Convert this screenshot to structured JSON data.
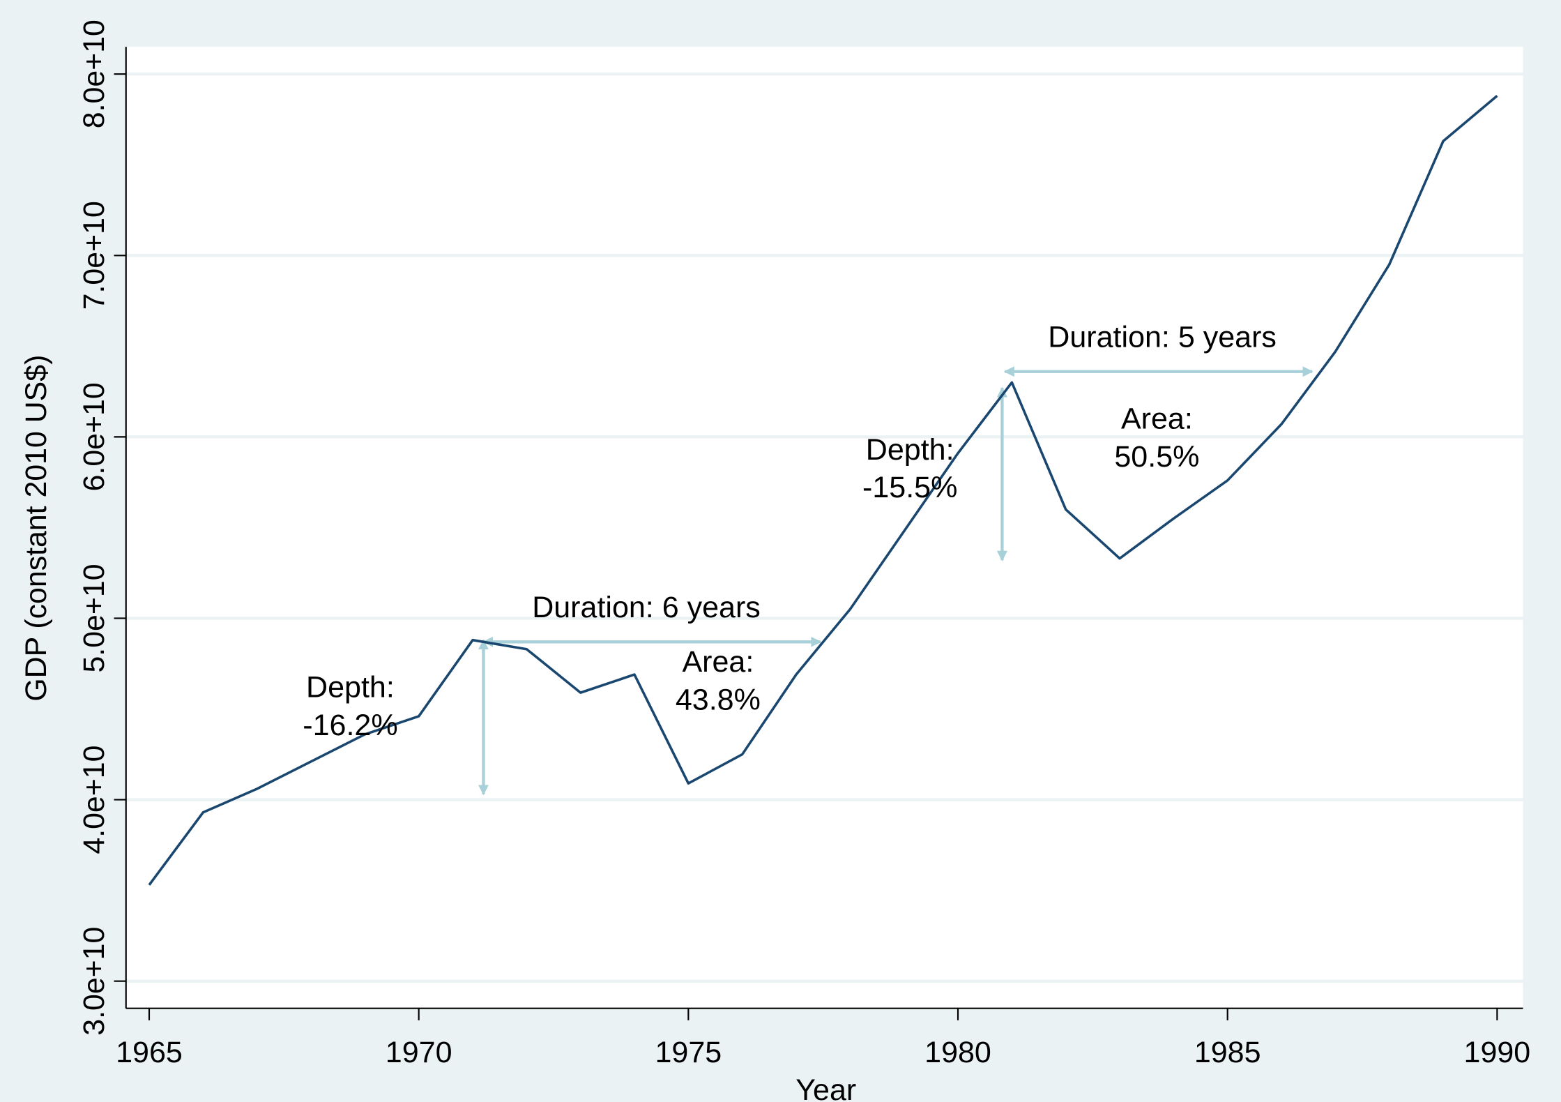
{
  "chart_data": {
    "type": "line",
    "x_label": "Year",
    "y_label": "GDP (constant 2010 US$)",
    "x": [
      1965,
      1966,
      1967,
      1968,
      1969,
      1970,
      1971,
      1972,
      1973,
      1974,
      1975,
      1976,
      1977,
      1978,
      1979,
      1980,
      1981,
      1982,
      1983,
      1984,
      1985,
      1986,
      1987,
      1988,
      1989,
      1990
    ],
    "series": [
      {
        "color": "#1a476f",
        "values": [
          35300000000,
          39300000000,
          40600000000,
          42100000000,
          43600000000,
          44600000000,
          48800000000,
          48300000000,
          45900000000,
          46900000000,
          40900000000,
          42500000000,
          46900000000,
          50500000000,
          54800000000,
          59100000000,
          63000000000,
          56000000000,
          53300000000,
          55500000000,
          57600000000,
          60700000000,
          64700000000,
          69500000000,
          76300000000,
          78800000000
        ]
      }
    ],
    "xlim": [
      1964.57,
      1990.48
    ],
    "ylim": [
      28500000000,
      81500000000
    ],
    "xticks": [
      1965,
      1970,
      1975,
      1980,
      1985,
      1990
    ],
    "yticks": [
      {
        "value": 30000000000,
        "label": "3.0e+10"
      },
      {
        "value": 40000000000,
        "label": "4.0e+10"
      },
      {
        "value": 50000000000,
        "label": "5.0e+10"
      },
      {
        "value": 60000000000,
        "label": "6.0e+10"
      },
      {
        "value": 70000000000,
        "label": "7.0e+10"
      },
      {
        "value": 80000000000,
        "label": "8.0e+10"
      }
    ],
    "grid": true,
    "arrow_color": "#a8d0d8",
    "arrows": [
      {
        "x": [
          1971.2,
          1971.2
        ],
        "y": [
          48800000000,
          40300000000
        ]
      },
      {
        "x": [
          1971.2,
          1977.45
        ],
        "y": [
          48700000000,
          48700000000
        ]
      },
      {
        "x": [
          1980.82,
          1980.82
        ],
        "y": [
          62700000000,
          53200000000
        ]
      },
      {
        "x": [
          1980.87,
          1986.57
        ],
        "y": [
          63600000000,
          63600000000
        ]
      }
    ],
    "annotations": [
      {
        "lines": [
          "Depth:",
          "-16.2%"
        ],
        "x": 1968.73,
        "y": 46200000000
      },
      {
        "lines": [
          "Duration: 6 years"
        ],
        "x": 1974.22,
        "y": 50600000000
      },
      {
        "lines": [
          "Area:",
          "43.8%"
        ],
        "x": 1975.55,
        "y": 47600000000
      },
      {
        "lines": [
          "Depth:",
          "-15.5%"
        ],
        "x": 1979.11,
        "y": 59300000000
      },
      {
        "lines": [
          "Duration: 5 years"
        ],
        "x": 1983.79,
        "y": 65500000000
      },
      {
        "lines": [
          "Area:",
          "50.5%"
        ],
        "x": 1983.69,
        "y": 61000000000
      }
    ]
  }
}
